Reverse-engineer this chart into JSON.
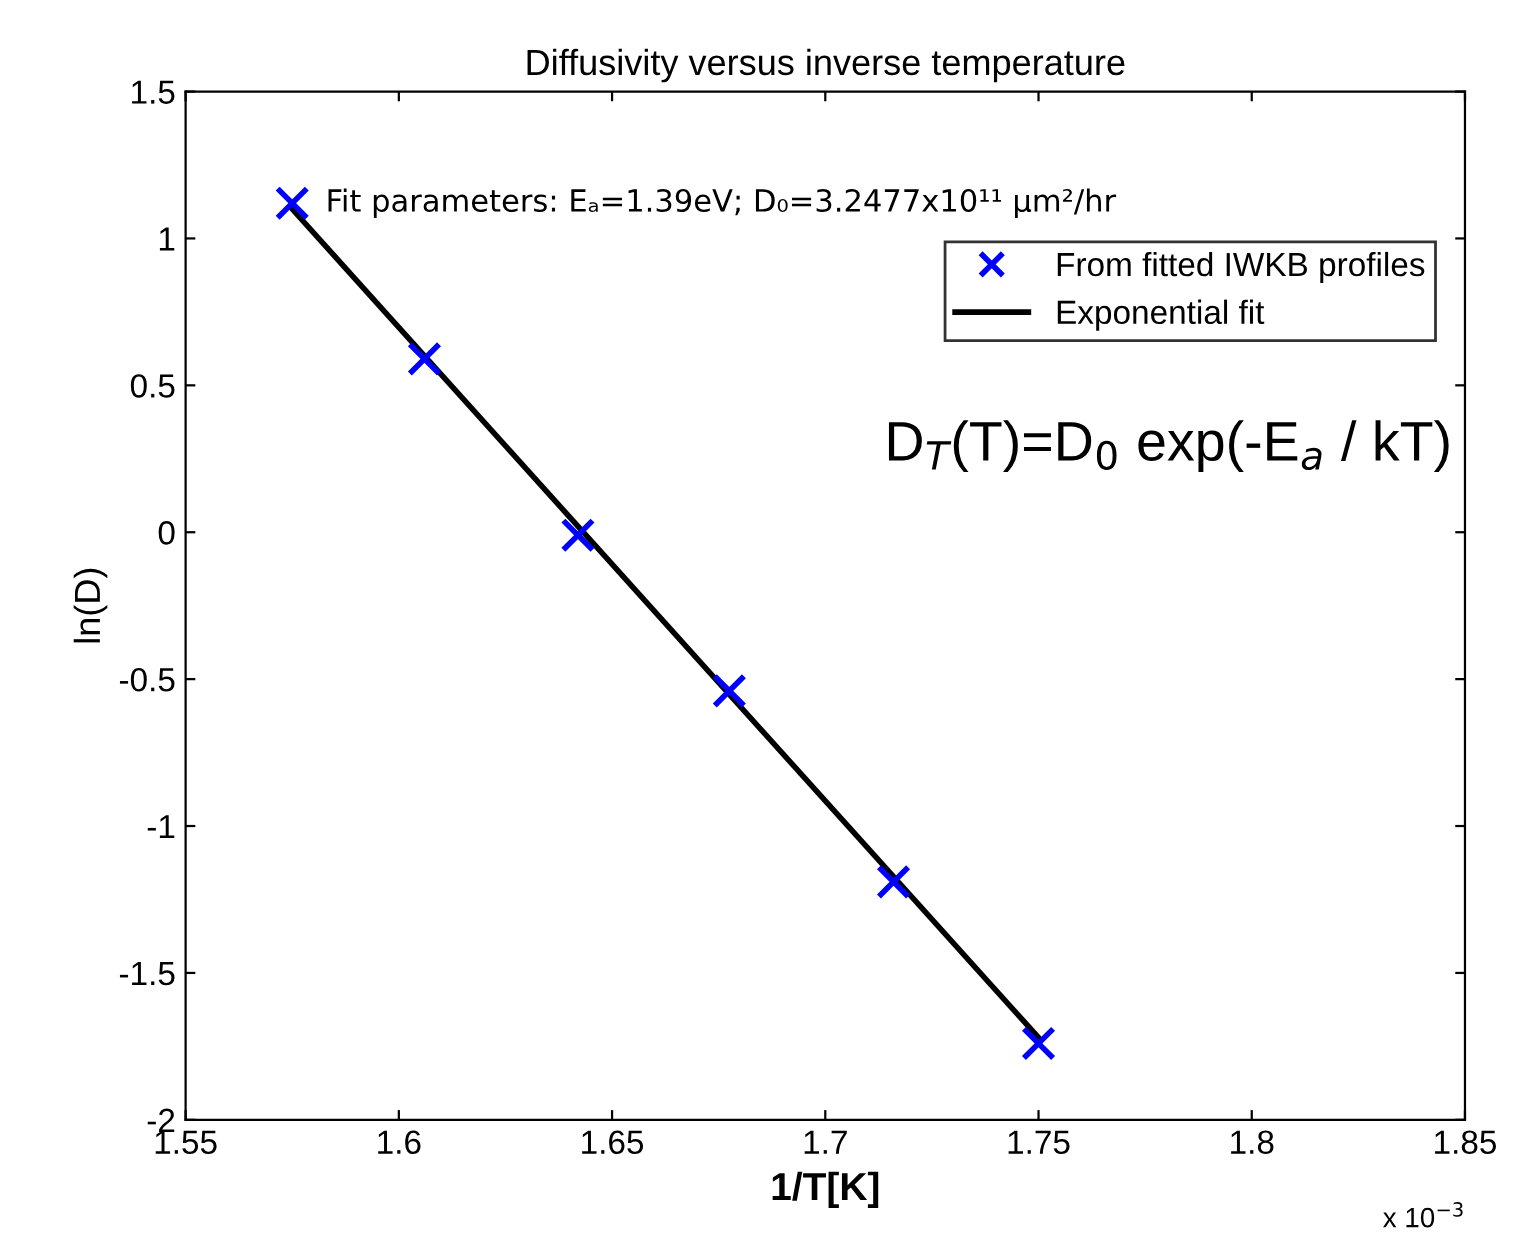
{
  "chart_data": {
    "type": "scatter",
    "title": "Diffusivity versus inverse temperature",
    "xlabel": "1/T[K]",
    "ylabel": "ln(D)",
    "series": [
      {
        "name": "From fitted IWKB profiles",
        "color": "#0000ff",
        "marker": "cross",
        "x": [
          1.575,
          1.606,
          1.642,
          1.6775,
          1.716,
          1.75
        ],
        "values": [
          1.12,
          0.59,
          -0.01,
          -0.54,
          -1.19,
          -1.74
        ]
      },
      {
        "name": "Exponential fit",
        "type": "line",
        "color": "#000000",
        "marker": "none",
        "line_style": "solid",
        "x": [
          1.575,
          1.75
        ],
        "values": [
          1.1,
          -1.72
        ]
      }
    ],
    "annotations": [
      {
        "text": "Fit parameters: Eₐ=1.39eV; D₀=3.2477x10¹¹ µm²/hr",
        "x": 1.575,
        "y": 1.12
      },
      "D$_{T}$(T)=D$_{0}$ exp(-E$_{a}$ / kT)",
      "x 10$^{−3}$"
    ],
    "xlim": [
      1.55,
      1.85
    ],
    "xticks": [
      1.55,
      1.6,
      1.65,
      1.7,
      1.75,
      1.8,
      1.85
    ],
    "ylim": [
      -2,
      1.5
    ],
    "yticks": [
      -2,
      -1.5,
      -1,
      -0.5,
      0,
      0.5,
      1,
      1.5
    ],
    "legend": "top right",
    "grid": false
  }
}
